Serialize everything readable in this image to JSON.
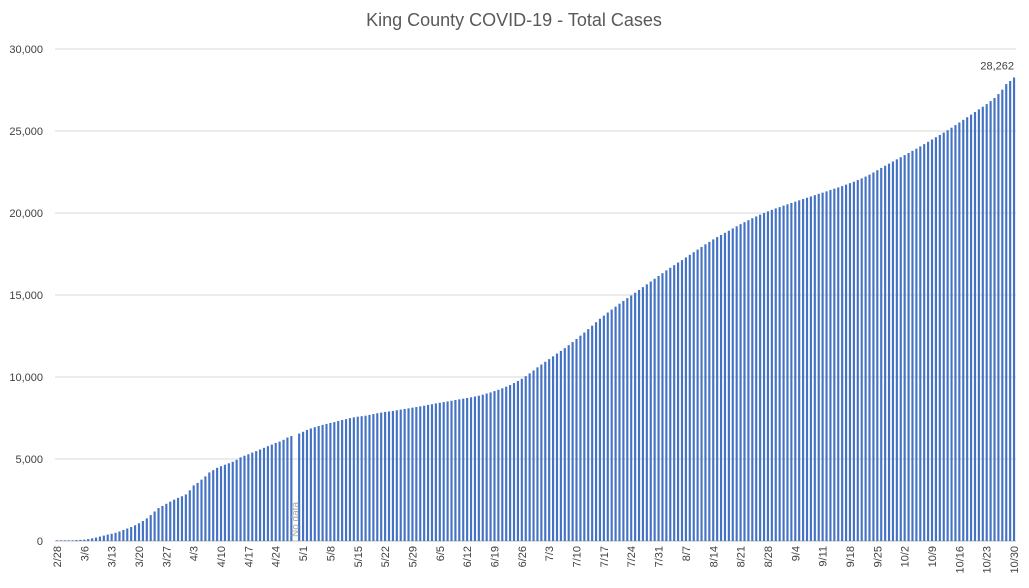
{
  "chart_data": {
    "type": "bar",
    "title": "King County COVID-19 - Total Cases",
    "xlabel": "",
    "ylabel": "",
    "ylim": [
      0,
      30000
    ],
    "y_ticks": [
      "0",
      "5,000",
      "10,000",
      "15,000",
      "20,000",
      "25,000",
      "30,000"
    ],
    "x_tick_labels": [
      "2/28",
      "3/6",
      "3/13",
      "3/20",
      "3/27",
      "4/3",
      "4/10",
      "4/17",
      "4/24",
      "5/1",
      "5/8",
      "5/15",
      "5/22",
      "5/29",
      "6/5",
      "6/12",
      "6/19",
      "6/26",
      "7/3",
      "7/10",
      "7/17",
      "7/24",
      "7/31",
      "8/7",
      "8/14",
      "8/21",
      "8/28",
      "9/4",
      "9/11",
      "9/18",
      "9/25",
      "10/2",
      "10/9",
      "10/16",
      "10/23",
      "10/30"
    ],
    "bar_color": "#4472c4",
    "grid": true,
    "annotations": [
      {
        "text": "No data",
        "category": "5/2"
      },
      {
        "text": "28,262",
        "category": "11/2"
      }
    ],
    "series": [
      {
        "values": [
          40,
          40,
          40,
          40,
          40,
          60,
          70,
          80,
          120,
          160,
          210,
          270,
          330,
          390,
          440,
          500,
          580,
          670,
          760,
          850,
          960,
          1080,
          1220,
          1380,
          1580,
          1800,
          2010,
          2140,
          2270,
          2400,
          2520,
          2630,
          2730,
          2840,
          3090,
          3390,
          3540,
          3740,
          3940,
          4180,
          4320,
          4460,
          4560,
          4650,
          4740,
          4830,
          4950,
          5100,
          5200,
          5290,
          5390,
          5480,
          5580,
          5680,
          5780,
          5880,
          5980,
          6060,
          6170,
          6310,
          6400,
          null,
          6550,
          6660,
          6770,
          6860,
          6940,
          7010,
          7080,
          7140,
          7200,
          7250,
          7320,
          7380,
          7430,
          7490,
          7540,
          7580,
          7610,
          7640,
          7690,
          7740,
          7790,
          7830,
          7870,
          7900,
          7930,
          7970,
          8010,
          8050,
          8090,
          8130,
          8170,
          8210,
          8250,
          8300,
          8340,
          8390,
          8430,
          8470,
          8510,
          8550,
          8600,
          8640,
          8680,
          8720,
          8760,
          8810,
          8860,
          8920,
          8990,
          9060,
          9140,
          9220,
          9310,
          9410,
          9510,
          9630,
          9760,
          9890,
          10050,
          10220,
          10400,
          10590,
          10760,
          10930,
          11090,
          11260,
          11430,
          11590,
          11760,
          11940,
          12130,
          12320,
          12520,
          12710,
          12920,
          13130,
          13340,
          13550,
          13740,
          13930,
          14110,
          14290,
          14470,
          14640,
          14810,
          14970,
          15140,
          15310,
          15480,
          15650,
          15820,
          15990,
          16160,
          16330,
          16500,
          16660,
          16820,
          16980,
          17130,
          17290,
          17450,
          17610,
          17770,
          17930,
          18090,
          18240,
          18390,
          18530,
          18660,
          18790,
          18920,
          19060,
          19190,
          19320,
          19440,
          19560,
          19680,
          19790,
          19900,
          20000,
          20100,
          20190,
          20280,
          20360,
          20450,
          20530,
          20610,
          20690,
          20770,
          20850,
          20930,
          21010,
          21090,
          21170,
          21240,
          21320,
          21400,
          21480,
          21560,
          21640,
          21730,
          21820,
          21910,
          22010,
          22110,
          22220,
          22340,
          22470,
          22610,
          22750,
          22880,
          23010,
          23140,
          23270,
          23400,
          23530,
          23660,
          23790,
          23920,
          24060,
          24200,
          24340,
          24480,
          24620,
          24760,
          24900,
          25050,
          25200,
          25360,
          25520,
          25680,
          25840,
          26000,
          26160,
          26320,
          26480,
          26640,
          26820,
          27010,
          27250,
          27520,
          27860,
          28050,
          28262
        ]
      }
    ]
  }
}
